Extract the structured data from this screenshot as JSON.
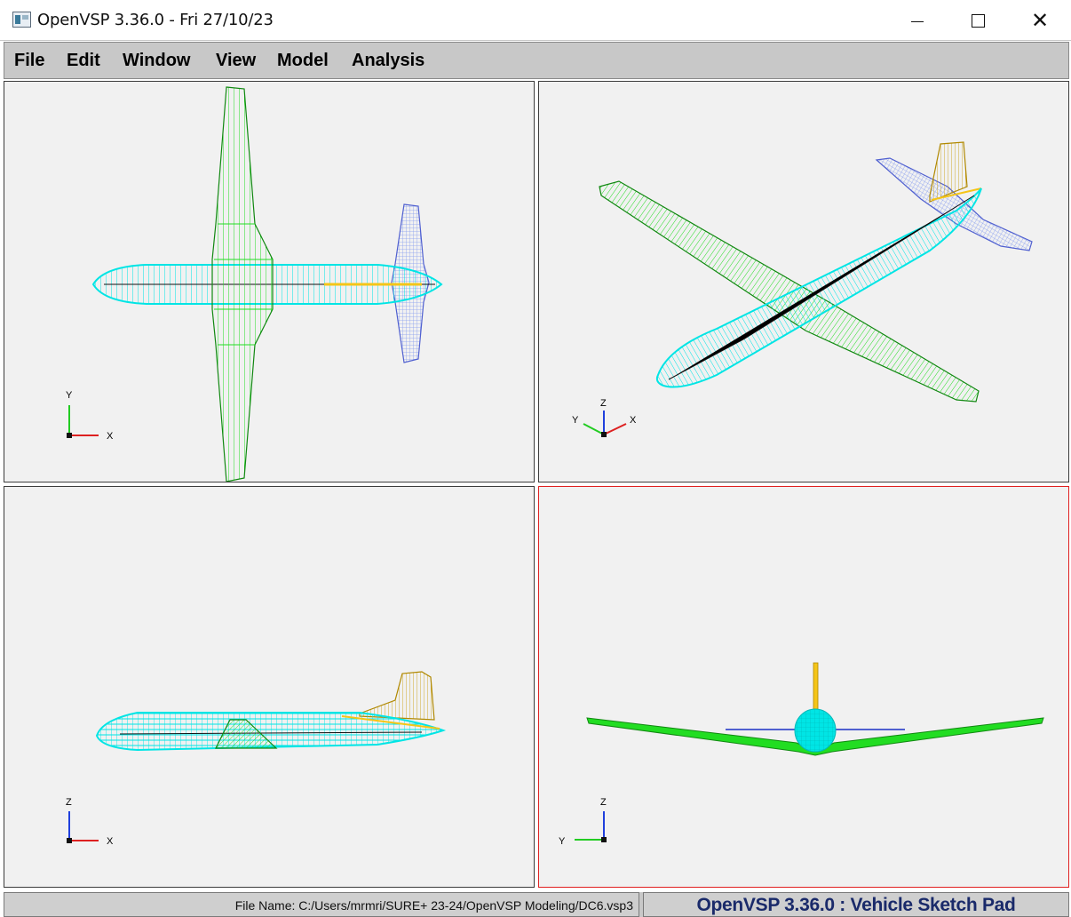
{
  "window": {
    "title": "OpenVSP 3.36.0 - Fri 27/10/23",
    "close_glyph": "✕"
  },
  "menu": {
    "items": [
      {
        "label": "File"
      },
      {
        "label": "Edit"
      },
      {
        "label": "Window"
      },
      {
        "label": "View"
      },
      {
        "label": "Model"
      },
      {
        "label": "Analysis"
      }
    ]
  },
  "viewports": {
    "top": {
      "axis_v": "Y",
      "axis_h": "X"
    },
    "iso": {
      "axis_v": "Z",
      "axis_l": "Y",
      "axis_r": "X"
    },
    "side": {
      "axis_v": "Z",
      "axis_h": "X"
    },
    "front": {
      "axis_v": "Z",
      "axis_h": "Y"
    }
  },
  "status": {
    "file_name": "File Name: C:/Users/mrmri/SURE+ 23-24/OpenVSP Modeling/DC6.vsp3",
    "brand": "OpenVSP 3.36.0 : Vehicle Sketch Pad"
  },
  "colors": {
    "fuselage": "#00e5e5",
    "wing": "#22dd22",
    "vertical_tail": "#f5c518",
    "horizontal_tail": "#8a9ff0",
    "active_viewport_border": "#e02020"
  },
  "icons": {
    "app": "openvsp-app-icon",
    "minimize": "minimize-icon",
    "maximize": "maximize-icon",
    "close": "close-icon"
  }
}
